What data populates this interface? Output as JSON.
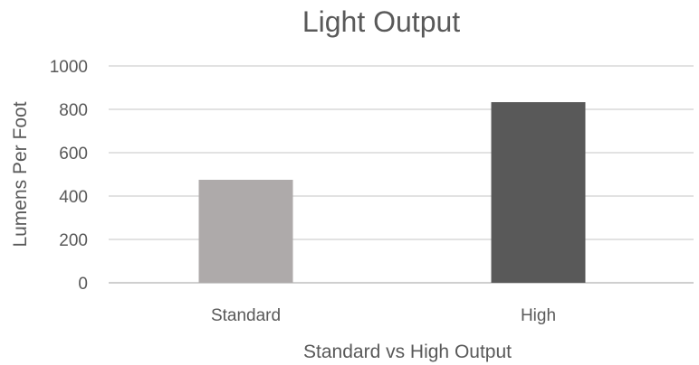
{
  "chart_data": {
    "type": "bar",
    "title": "Light Output",
    "xlabel": "Standard vs High Output",
    "ylabel": "Lumens Per Foot",
    "categories": [
      "Standard",
      "High"
    ],
    "values": [
      475,
      833
    ],
    "bar_colors": [
      "#aeaaaa",
      "#595959"
    ],
    "ylim": [
      0,
      1000
    ],
    "yticks": [
      0,
      200,
      400,
      600,
      800,
      1000
    ],
    "grid": true,
    "legend": "none"
  }
}
